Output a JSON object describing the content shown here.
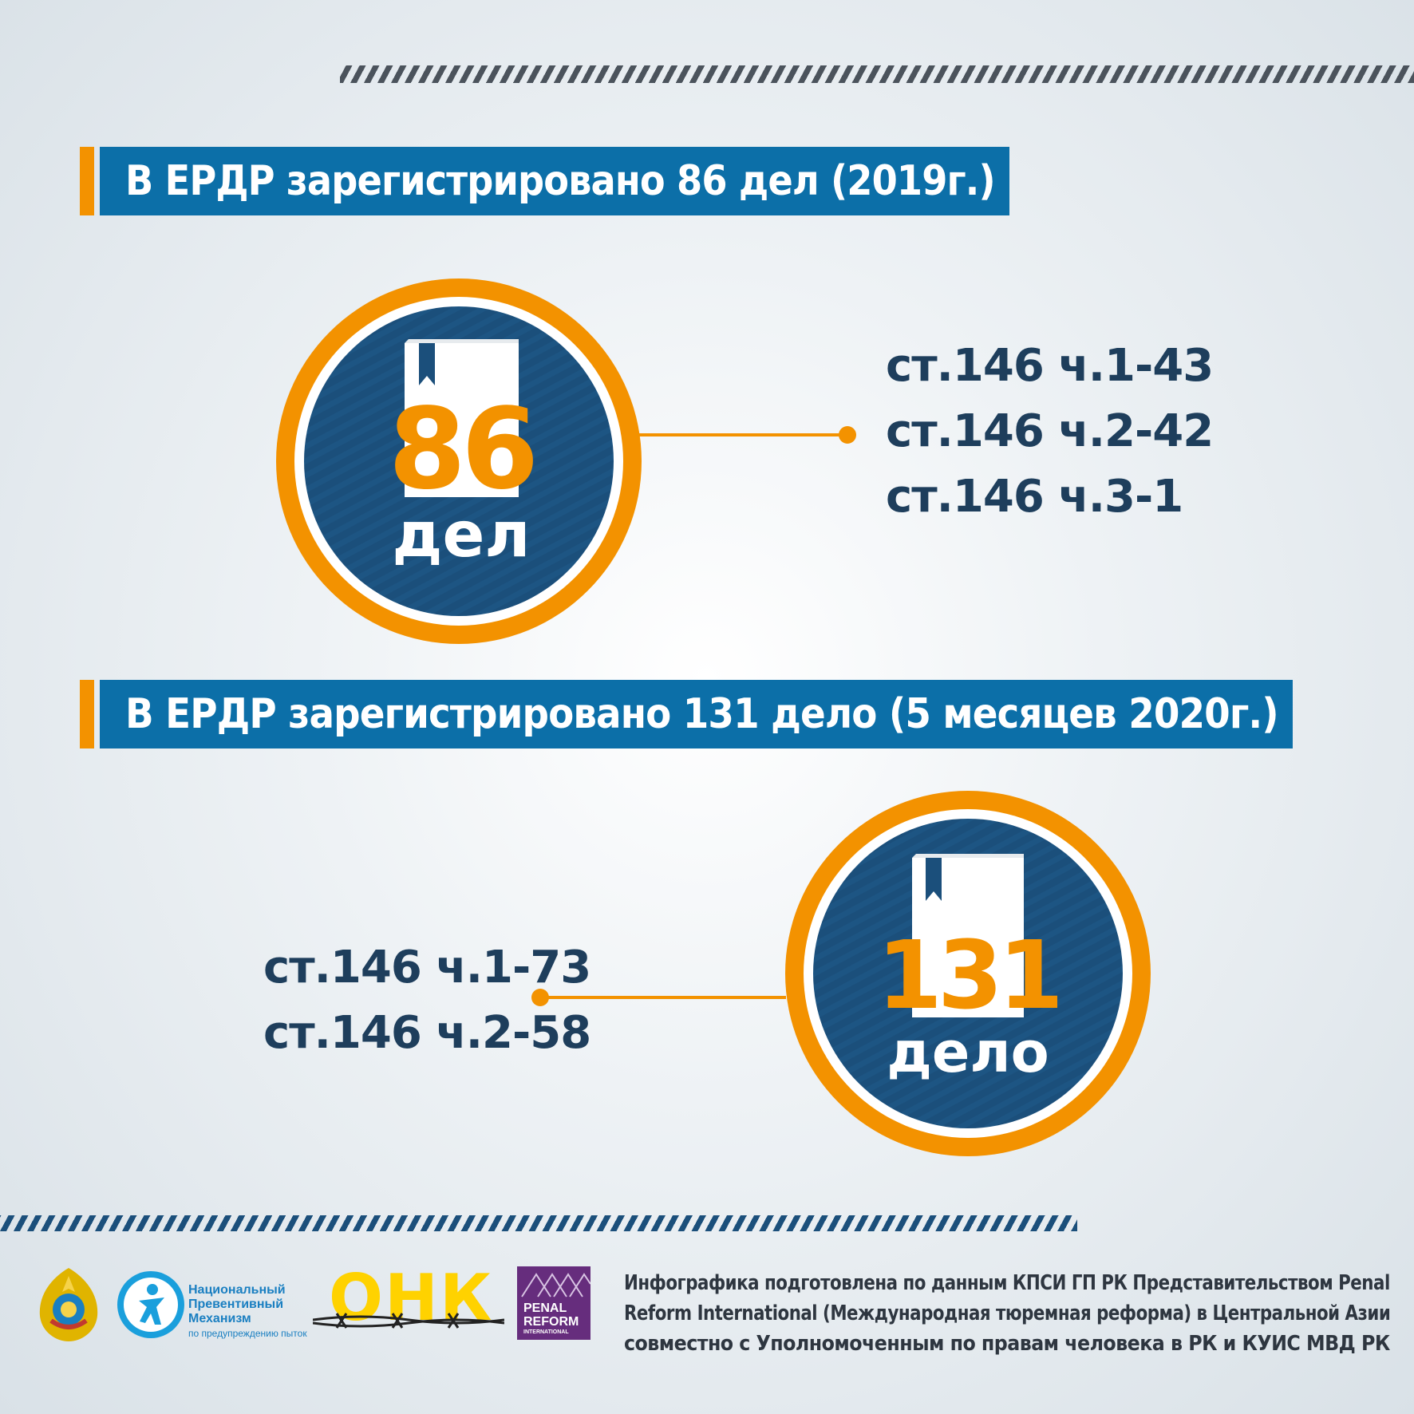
{
  "header": {
    "banner1": "В ЕРДР зарегистрировано 86 дел (2019г.)",
    "banner2": "В ЕРДР зарегистрировано 131 дело (5 месяцев 2020г.)"
  },
  "block2019": {
    "total": "86",
    "unit": "дел",
    "items": [
      "ст.146 ч.1-43",
      "ст.146 ч.2-42",
      "ст.146 ч.3-1"
    ]
  },
  "block2020": {
    "total": "131",
    "unit": "дело",
    "items": [
      "ст.146 ч.1-73",
      "ст.146 ч.2-58"
    ]
  },
  "footer": {
    "npm": {
      "line1": "Национальный",
      "line2": "Превентивный",
      "line3": "Механизм",
      "line4": "по предупреждению пыток"
    },
    "onk": "ОНК",
    "pri": {
      "line1": "PENAL",
      "line2": "REFORM",
      "line3": "INTERNATIONAL"
    },
    "credit": [
      "Инфографика подготовлена по данным КПСИ ГП РК Представительством Penal",
      "Reform International (Международная тюремная реформа) в Центральной Азии",
      "совместно с Уполномоченным по правам человека в РК и КУИС МВД РК"
    ]
  },
  "colors": {
    "orange": "#f39200",
    "banner_blue": "#0c6fa8",
    "circle_navy": "#1b4f7b",
    "text_navy": "#1e3e5c"
  },
  "icons": [
    "book-icon",
    "emblem-icon",
    "npm-figure-icon",
    "barbed-wire-icon"
  ]
}
